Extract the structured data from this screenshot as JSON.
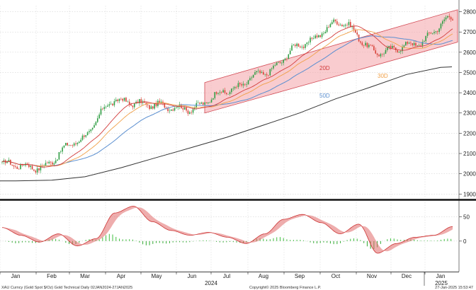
{
  "chart_data": [
    {
      "type": "candlestick",
      "title": "",
      "ylim": [
        1880,
        2830
      ],
      "y_ticks": [
        1900,
        2000,
        2100,
        2200,
        2300,
        2400,
        2500,
        2600,
        2700,
        2800
      ],
      "x_ticks": [
        "Jan",
        "Feb",
        "Mar",
        "Apr",
        "May",
        "Jun",
        "Jul",
        "Aug",
        "Sep",
        "Oct",
        "Nov",
        "Dec",
        "Jan"
      ],
      "year_labels": [
        "2024",
        "2025"
      ],
      "grid": true,
      "monthly_anchor_prices": {
        "Jan": 2050,
        "Feb": 2030,
        "Mar": 2160,
        "Apr": 2360,
        "May": 2340,
        "Jun": 2320,
        "Jul": 2410,
        "Aug": 2500,
        "Sep": 2640,
        "Oct": 2750,
        "Nov": 2600,
        "Dec": 2640,
        "Jan-2025": 2770
      },
      "series": [
        {
          "name": "20D",
          "color": "#d23c3c"
        },
        {
          "name": "30D",
          "color": "#f0a048"
        },
        {
          "name": "50D",
          "color": "#5b8fd0"
        },
        {
          "name": "",
          "color": "#333333",
          "values": [
            1965,
            1968,
            1985,
            2030,
            2080,
            2130,
            2180,
            2240,
            2300,
            2370,
            2430,
            2490,
            2525
          ]
        }
      ],
      "channel": {
        "start": "Jun",
        "end": "Jan-2025",
        "upper_start": 2450,
        "upper_end": 2810,
        "lower_start": 2300,
        "lower_end": 2650,
        "color": "#f4a3a8"
      }
    },
    {
      "type": "oscillator",
      "ylim": [
        -60,
        80
      ],
      "y_ticks": [
        50,
        0
      ],
      "values": [
        28,
        12,
        -2,
        15,
        -10,
        5,
        58,
        72,
        40,
        22,
        12,
        18,
        8,
        -5,
        15,
        45,
        55,
        38,
        15,
        35,
        -25,
        -5,
        8,
        12,
        30
      ]
    }
  ],
  "footer": {
    "left": "XAU Curncy (Gold Spot   $/Oz) Gold Technical  Daily 02JAN2024-27JAN2025",
    "center": "Copyright© 2025 Bloomberg Finance L.P.",
    "right": "27-Jan-2025 15:53:47"
  }
}
